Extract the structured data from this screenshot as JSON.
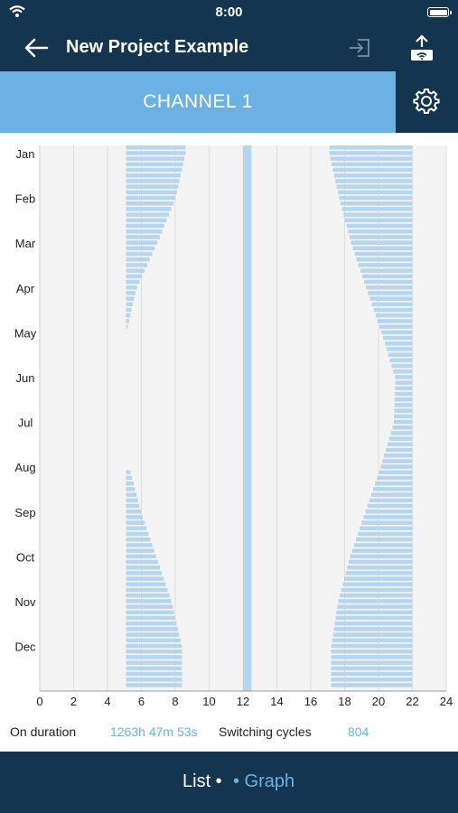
{
  "status_bar": {
    "time": "8:00"
  },
  "header": {
    "title": "New Project Example"
  },
  "channel": {
    "name": "CHANNEL 1"
  },
  "chart_data": {
    "type": "bar",
    "orientation": "horizontal-timeline",
    "x_ticks": [
      "0",
      "2",
      "4",
      "6",
      "8",
      "10",
      "12",
      "14",
      "16",
      "18",
      "20",
      "22",
      "24"
    ],
    "xlim": [
      0,
      24
    ],
    "month_labels": [
      "Jan",
      "Feb",
      "Mar",
      "Apr",
      "May",
      "Jun",
      "Jul",
      "Aug",
      "Sep",
      "Oct",
      "Nov",
      "Dec"
    ],
    "grid": true,
    "series": [
      {
        "values_start_hours": [
          5.1,
          5.1,
          5.1,
          5.1,
          5.1,
          null,
          null,
          5.1,
          5.1,
          5.1,
          5.1,
          5.1
        ],
        "values_end_hours": [
          8.6,
          8.0,
          6.9,
          5.7,
          5.1,
          null,
          null,
          5.3,
          6.0,
          6.9,
          7.8,
          8.4
        ]
      },
      {
        "values_start_hours": [
          12.0,
          12.0,
          12.0,
          12.0,
          12.0,
          12.0,
          12.0,
          12.0,
          12.0,
          12.0,
          12.0,
          12.0
        ],
        "values_end_hours": [
          12.5,
          12.5,
          12.5,
          12.5,
          12.5,
          12.5,
          12.5,
          12.5,
          12.5,
          12.5,
          12.5,
          12.5
        ]
      },
      {
        "values_start_hours": [
          17.1,
          17.7,
          18.4,
          19.3,
          20.2,
          21.0,
          20.9,
          20.1,
          19.2,
          18.3,
          17.6,
          17.2
        ],
        "values_end_hours": [
          22.0,
          22.0,
          22.0,
          22.0,
          22.0,
          22.0,
          22.0,
          22.0,
          22.0,
          22.0,
          22.0,
          22.0
        ]
      }
    ],
    "bar_color": "#b7d6ee",
    "background": "#f4f4f4"
  },
  "stats": {
    "on_duration_label": "On duration",
    "on_duration_value": "1263h 47m 53s",
    "switching_cycles_label": "Switching cycles",
    "switching_cycles_value": "804"
  },
  "tabs": {
    "list": "List •",
    "graph": "• Graph"
  },
  "colors": {
    "navy": "#14354f",
    "accent": "#6cb1e3"
  }
}
